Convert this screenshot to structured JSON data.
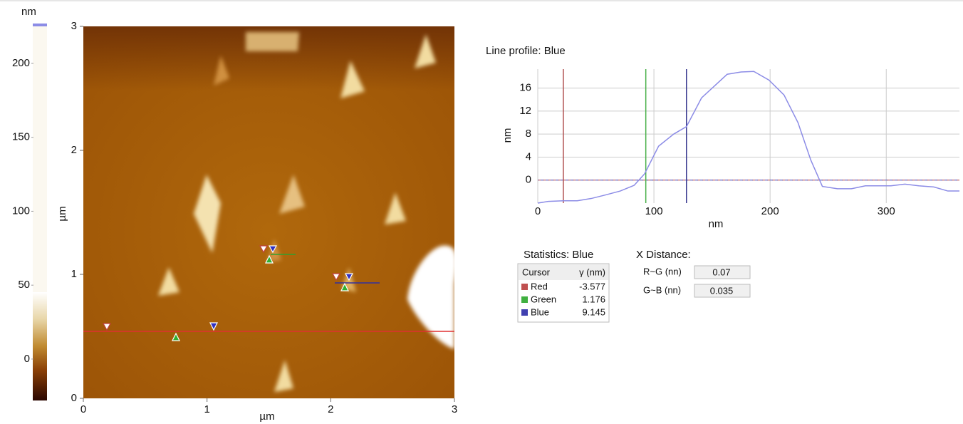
{
  "chart_data": [
    {
      "type": "image",
      "xlabel": "µm",
      "ylabel": "µm",
      "xlim": [
        0,
        3
      ],
      "ylim": [
        0,
        3
      ],
      "xticks": [
        0,
        1,
        2,
        3
      ],
      "yticks": [
        0,
        1,
        2,
        3
      ],
      "colorbar": {
        "label": "nm",
        "lim": [
          -28,
          226
        ],
        "ticks": [
          0,
          50,
          100,
          150,
          200
        ]
      }
    },
    {
      "type": "line",
      "title": "Line profile: Blue",
      "xlabel": "nm",
      "ylabel": "nm",
      "x": [
        0,
        9,
        22,
        34,
        46,
        58,
        71,
        83,
        92,
        104,
        117,
        128,
        141,
        163,
        175,
        186,
        199,
        212,
        224,
        235,
        245,
        258,
        270,
        282,
        304,
        316,
        328,
        341,
        353,
        363
      ],
      "series": [
        {
          "color": "#8c8ce6",
          "values": [
            -4,
            -3.7,
            -3.6,
            -3.6,
            -3.2,
            -2.6,
            -1.9,
            -0.9,
            1.1,
            5.9,
            8,
            9.3,
            14.3,
            18.4,
            18.8,
            18.9,
            17.4,
            14.8,
            10,
            3.5,
            -1.1,
            -1.5,
            -1.5,
            -1,
            -1,
            -0.7,
            -1,
            -1.2,
            -1.9,
            -1.9
          ]
        }
      ],
      "cursors": [
        {
          "color": "#b05050",
          "x": 22
        },
        {
          "color": "#48b048",
          "x": 93
        },
        {
          "color": "#3a3a90",
          "x": 128
        }
      ],
      "xlim": [
        0,
        363
      ],
      "ylim": [
        -4,
        19.3
      ],
      "xticks": [
        0,
        100,
        200,
        300
      ],
      "yticks": [
        0,
        4,
        8,
        12,
        16
      ],
      "grid": true
    }
  ],
  "statistics": {
    "title": "Statistics: Blue",
    "headers": [
      "Cursor",
      "γ (nm)"
    ],
    "rows": [
      {
        "name": "Red",
        "value": -3.577,
        "color": "#c05050"
      },
      {
        "name": "Green",
        "value": 1.176,
        "color": "#40b040"
      },
      {
        "name": "Blue",
        "value": 9.145,
        "color": "#4040b0"
      }
    ]
  },
  "x_distance": {
    "title": "X Distance:",
    "rows": [
      {
        "label": "R~G (nn)",
        "value": 0.07
      },
      {
        "label": "G~B (nn)",
        "value": 0.035
      }
    ]
  }
}
